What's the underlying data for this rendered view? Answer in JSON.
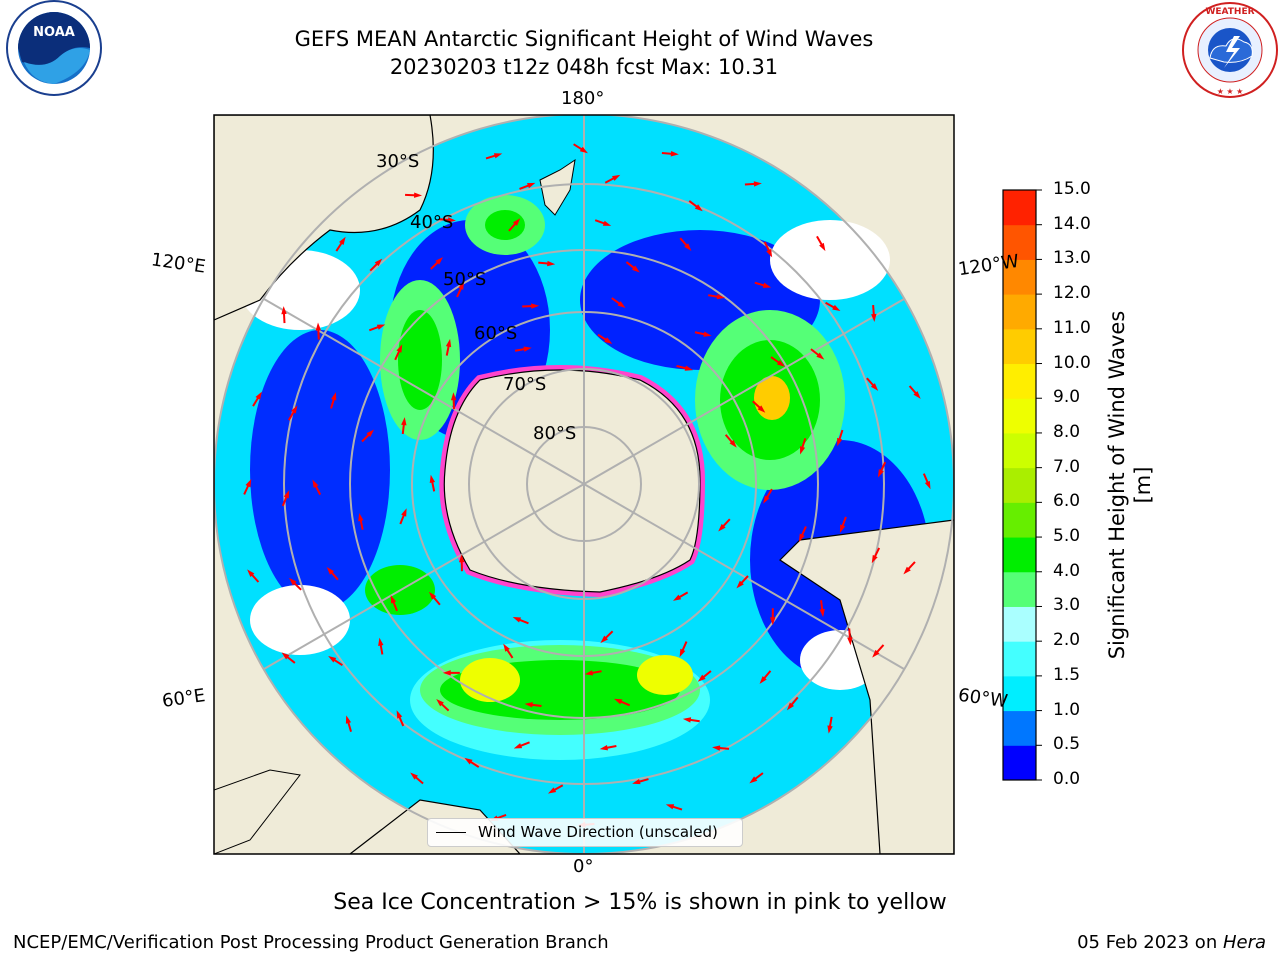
{
  "title_line1": "GEFS MEAN Antarctic Significant Height of Wind Waves",
  "title_line2": "20230203 t12z 048h fcst   Max: 10.31",
  "logos": {
    "left": "noaa-logo",
    "right": "nws-logo"
  },
  "map": {
    "longitude_labels": {
      "top": "180°",
      "bottom": "0°",
      "upper_left": "120°E",
      "upper_right": "120°W",
      "lower_left": "60°E",
      "lower_right": "60°W"
    },
    "latitude_labels": [
      "30°S",
      "40°S",
      "50°S",
      "60°S",
      "70°S",
      "80°S"
    ],
    "legend_label": "Wind Wave Direction (unscaled)",
    "colors": {
      "land": "#efebd8",
      "ocean_low": "#0000ff",
      "ice": "#ff44cc",
      "arrow": "#ff0000",
      "grid": "#b0b0b0"
    }
  },
  "colorbar": {
    "label": "Significant Height of Wind Waves [m]",
    "ticks": [
      "0.0",
      "0.5",
      "1.0",
      "1.5",
      "2.0",
      "3.0",
      "4.0",
      "5.0",
      "6.0",
      "7.0",
      "8.0",
      "9.0",
      "10.0",
      "11.0",
      "12.0",
      "13.0",
      "14.0",
      "15.0"
    ],
    "colors": [
      "#0000ff",
      "#0077ff",
      "#00eeff",
      "#44ffff",
      "#aaffff",
      "#55ff77",
      "#00ee00",
      "#66ee00",
      "#aaee00",
      "#ccff00",
      "#eeff00",
      "#ffee00",
      "#ffcc00",
      "#ffaa00",
      "#ff8800",
      "#ff5500",
      "#ff2200"
    ]
  },
  "bottom_note": "Sea Ice Concentration > 15% is shown in pink to yellow",
  "credit": "NCEP/EMC/Verification Post Processing Product Generation Branch",
  "date": {
    "text": "05 Feb 2023 on ",
    "machine": "Hera"
  }
}
